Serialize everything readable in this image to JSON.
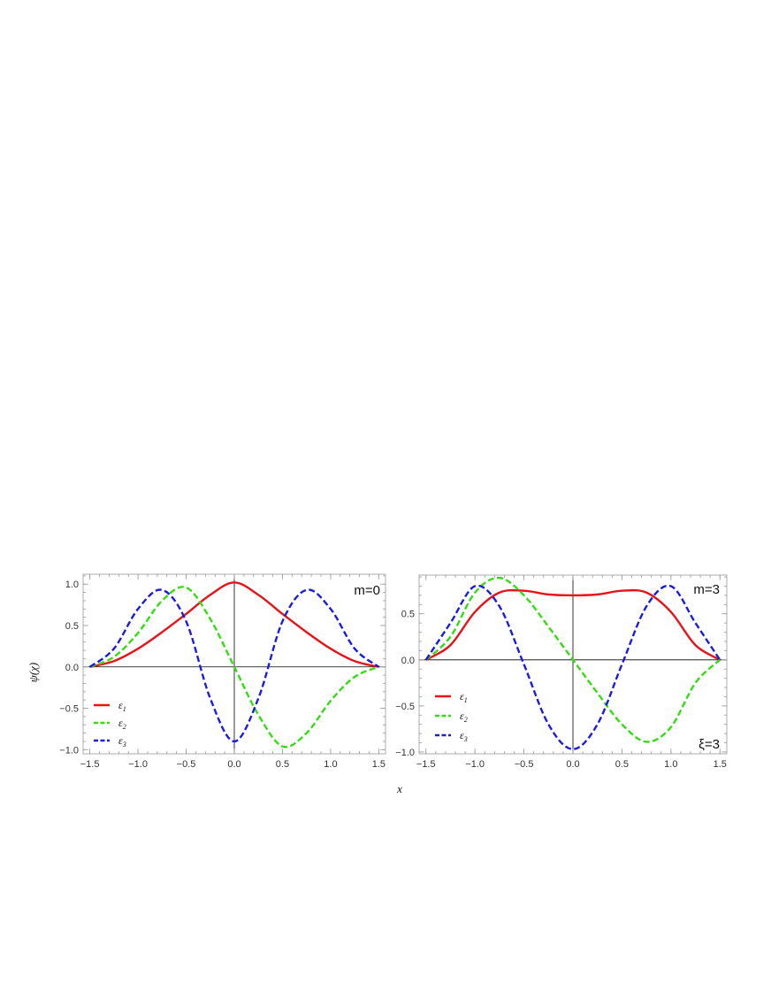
{
  "chart_data": [
    {
      "type": "line",
      "annotation": "m=0",
      "ylabel": "ψ(χ)",
      "xlim": [
        -1.57,
        1.57
      ],
      "ylim": [
        -1.05,
        1.12
      ],
      "xticks": [
        "-1.5",
        "-1.0",
        "-0.5",
        "0.0",
        "0.5",
        "1.0",
        "1.5"
      ],
      "yticks": [
        "1.0",
        "0.5",
        "0.0",
        "-0.5",
        "-1.0"
      ],
      "grid": false,
      "legend_position": "bottom-left",
      "series": [
        {
          "name": "ε1",
          "legend_base": "ε",
          "legend_sub": "1",
          "color": "#e8121b",
          "dash": "solid",
          "x": [
            -1.5,
            -1.25,
            -1.0,
            -0.75,
            -0.5,
            -0.25,
            0.0,
            0.25,
            0.5,
            0.75,
            1.0,
            1.25,
            1.5
          ],
          "y": [
            0.0,
            0.07,
            0.22,
            0.42,
            0.64,
            0.87,
            1.02,
            0.87,
            0.64,
            0.42,
            0.22,
            0.07,
            0.0
          ]
        },
        {
          "name": "ε2",
          "legend_base": "ε",
          "legend_sub": "2",
          "color": "#33dd11",
          "dash": "dashed",
          "x": [
            -1.5,
            -1.25,
            -1.0,
            -0.75,
            -0.5,
            -0.25,
            0.0,
            0.25,
            0.5,
            0.75,
            1.0,
            1.25,
            1.5
          ],
          "y": [
            0.0,
            0.12,
            0.41,
            0.8,
            0.96,
            0.58,
            0.0,
            -0.58,
            -0.96,
            -0.8,
            -0.41,
            -0.12,
            0.0
          ]
        },
        {
          "name": "ε3",
          "legend_base": "ε",
          "legend_sub": "3",
          "color": "#1c1ce0",
          "dash": "dashed",
          "x": [
            -1.5,
            -1.25,
            -1.0,
            -0.75,
            -0.5,
            -0.25,
            0.0,
            0.25,
            0.5,
            0.75,
            1.0,
            1.25,
            1.5
          ],
          "y": [
            0.0,
            0.22,
            0.7,
            0.93,
            0.55,
            -0.38,
            -0.9,
            -0.38,
            0.55,
            0.93,
            0.7,
            0.22,
            0.0
          ]
        }
      ]
    },
    {
      "type": "line",
      "annotation": "m=3",
      "annotation2": "ξ=3",
      "xlim": [
        -1.57,
        1.57
      ],
      "ylim": [
        -1.02,
        0.92
      ],
      "xticks": [
        "-1.5",
        "-1.0",
        "-0.5",
        "0.0",
        "0.5",
        "1.0",
        "1.5"
      ],
      "yticks": [
        "0.5",
        "0.0",
        "-0.5",
        "-1.0"
      ],
      "grid": false,
      "legend_position": "bottom-left",
      "series": [
        {
          "name": "ε1",
          "legend_base": "ε",
          "legend_sub": "1",
          "color": "#e8121b",
          "dash": "solid",
          "x": [
            -1.5,
            -1.25,
            -1.0,
            -0.75,
            -0.5,
            -0.25,
            0.0,
            0.25,
            0.5,
            0.75,
            1.0,
            1.25,
            1.5
          ],
          "y": [
            0.0,
            0.16,
            0.52,
            0.73,
            0.75,
            0.71,
            0.7,
            0.71,
            0.75,
            0.73,
            0.52,
            0.16,
            0.0
          ]
        },
        {
          "name": "ε2",
          "legend_base": "ε",
          "legend_sub": "2",
          "color": "#33dd11",
          "dash": "dashed",
          "x": [
            -1.5,
            -1.25,
            -1.0,
            -0.75,
            -0.5,
            -0.25,
            0.0,
            0.25,
            0.5,
            0.75,
            1.0,
            1.25,
            1.5
          ],
          "y": [
            0.0,
            0.25,
            0.73,
            0.89,
            0.7,
            0.36,
            0.0,
            -0.36,
            -0.7,
            -0.89,
            -0.73,
            -0.25,
            0.0
          ]
        },
        {
          "name": "ε3",
          "legend_base": "ε",
          "legend_sub": "3",
          "color": "#1c1ce0",
          "dash": "dashed",
          "x": [
            -1.5,
            -1.25,
            -1.0,
            -0.75,
            -0.5,
            -0.25,
            0.0,
            0.25,
            0.5,
            0.75,
            1.0,
            1.25,
            1.5
          ],
          "y": [
            0.0,
            0.4,
            0.8,
            0.58,
            -0.05,
            -0.7,
            -0.97,
            -0.7,
            -0.05,
            0.58,
            0.8,
            0.4,
            0.0
          ]
        }
      ]
    }
  ],
  "shared_xlabel": "x"
}
